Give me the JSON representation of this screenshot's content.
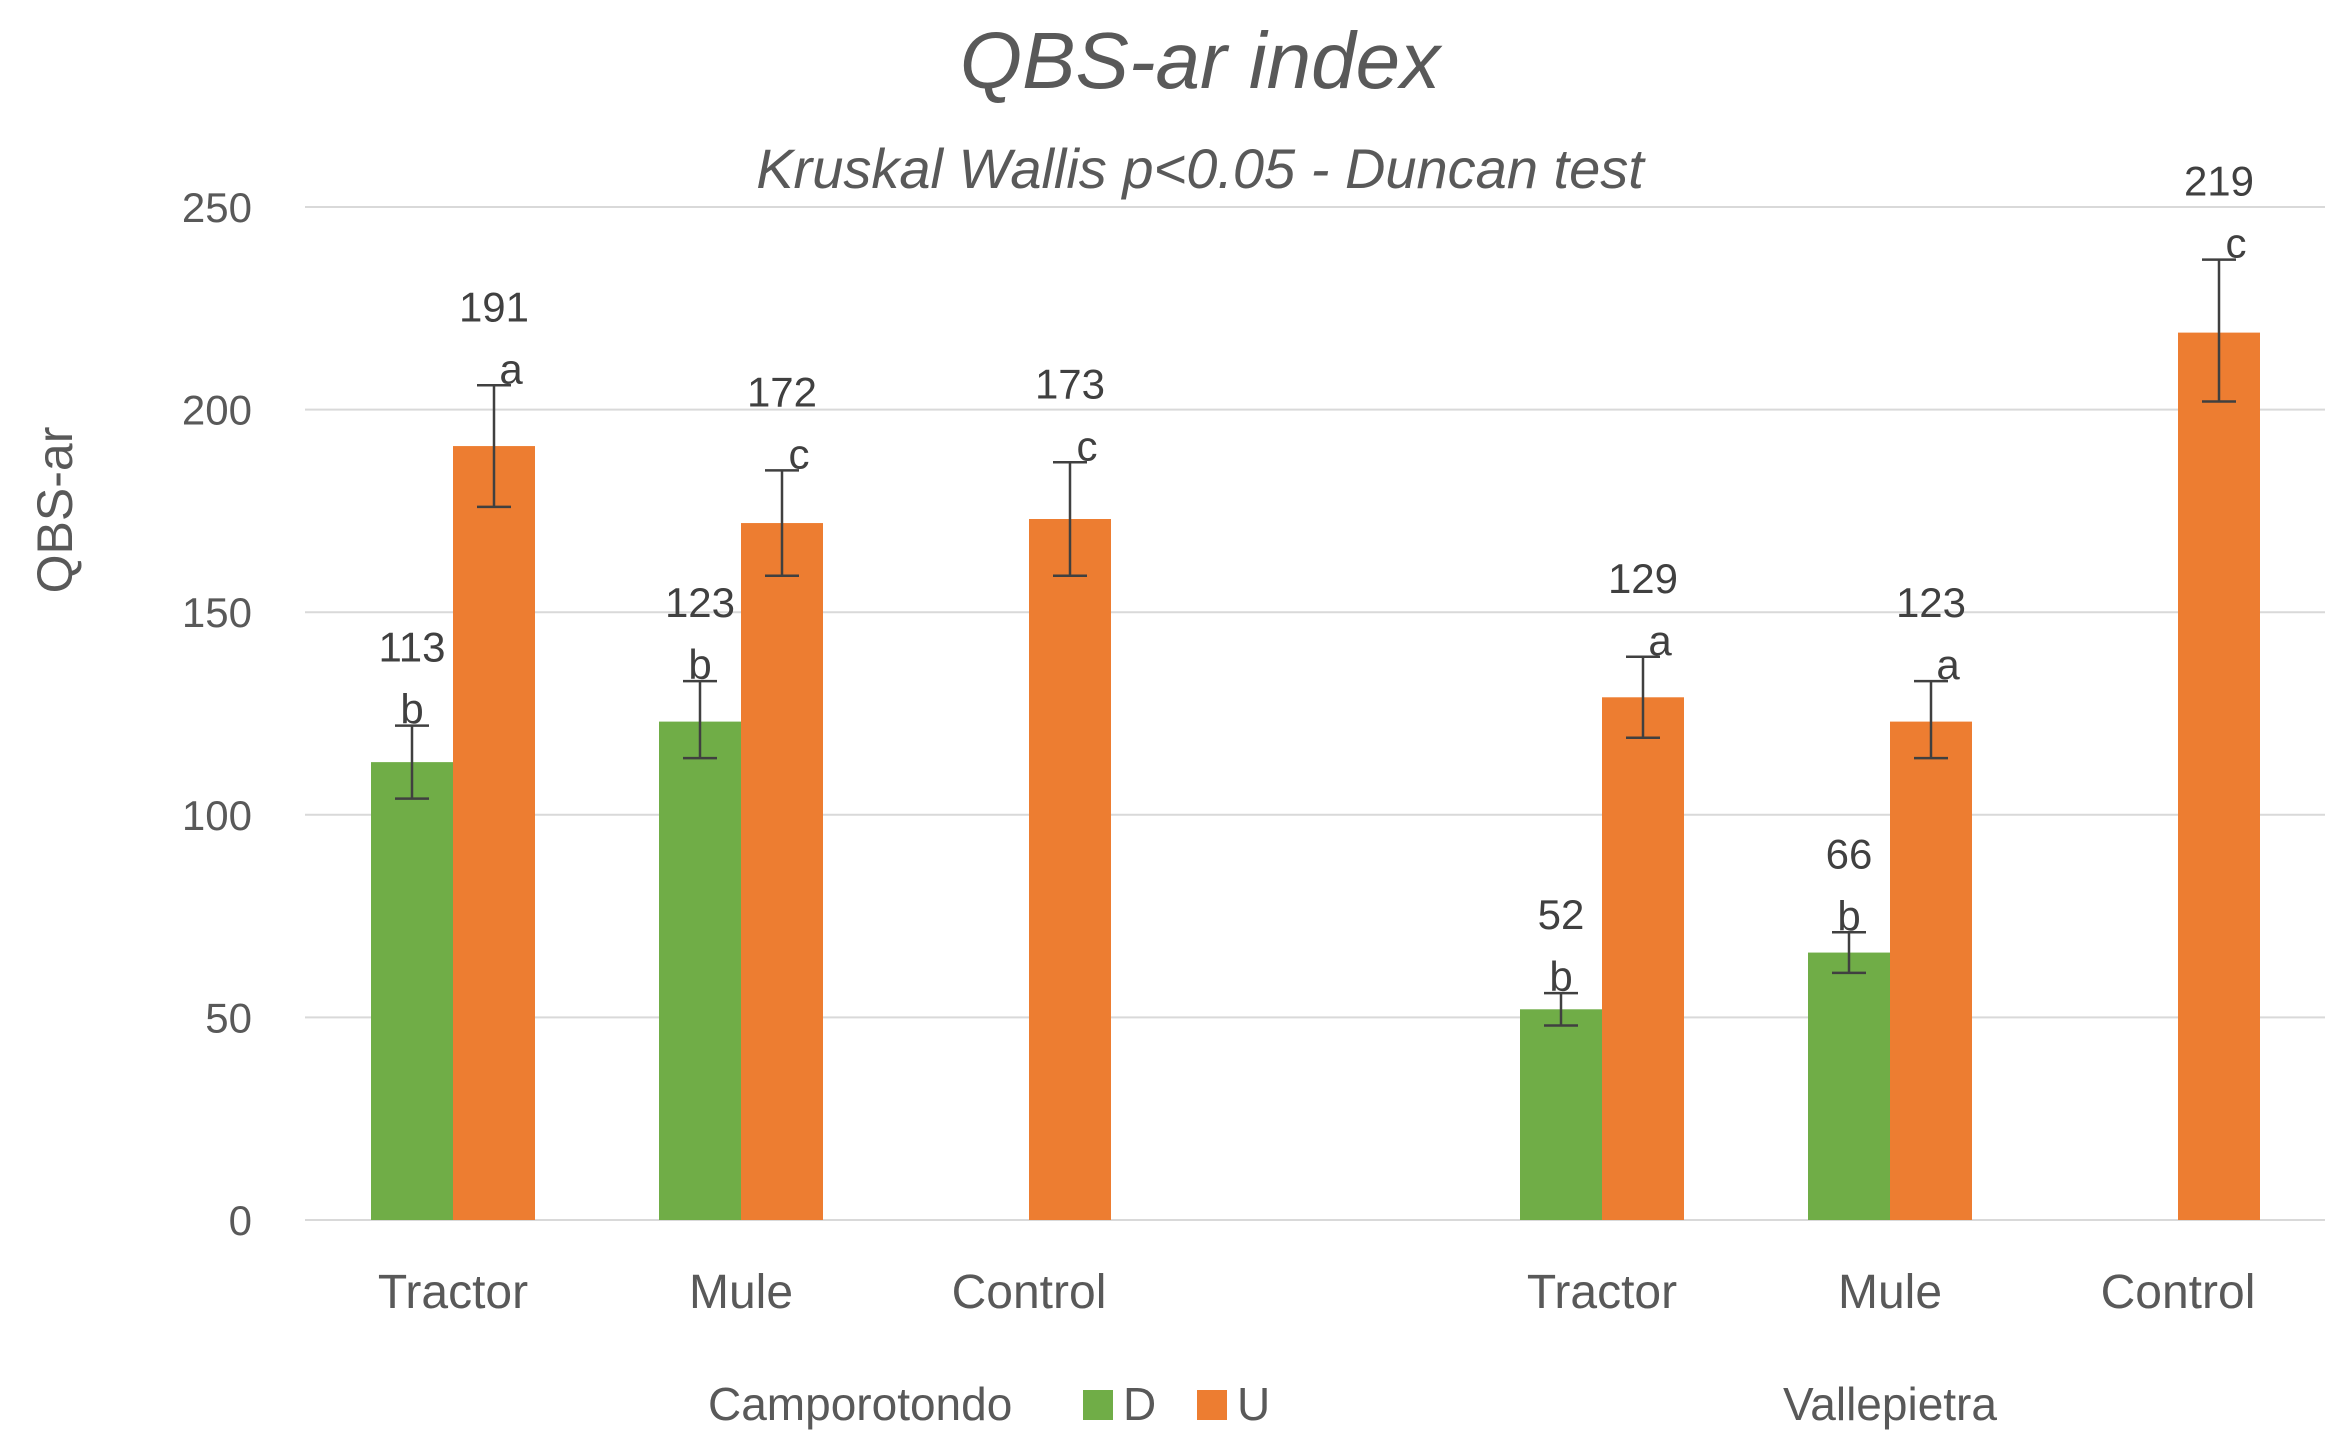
{
  "chart_data": {
    "type": "bar",
    "title": "QBS-ar index",
    "subtitle": "Kruskal Wallis p<0.05 - Duncan test",
    "ylabel": "QBS-ar",
    "xlabel": "",
    "ylim": [
      0,
      250
    ],
    "yticks": [
      0,
      50,
      100,
      150,
      200,
      250
    ],
    "grid": true,
    "legend_position": "bottom",
    "colors": {
      "D": "#70ad47",
      "U": "#ed7d31",
      "error": "#404040"
    },
    "groups": [
      {
        "name": "Camporotondo",
        "categories": [
          {
            "label": "Tractor",
            "D": {
              "value": 113,
              "label": "113",
              "letter": "b",
              "err_low": 104,
              "err_high": 122
            },
            "U": {
              "value": 191,
              "label": "191",
              "letter": "a",
              "err_low": 176,
              "err_high": 206
            }
          },
          {
            "label": "Mule",
            "D": {
              "value": 123,
              "label": "123",
              "letter": "b",
              "err_low": 114,
              "err_high": 133
            },
            "U": {
              "value": 172,
              "label": "172",
              "letter": "c",
              "err_low": 159,
              "err_high": 185
            }
          },
          {
            "label": "Control",
            "D": null,
            "U": {
              "value": 173,
              "label": "173",
              "letter": "c",
              "err_low": 159,
              "err_high": 187
            }
          }
        ]
      },
      {
        "name": "Vallepietra",
        "categories": [
          {
            "label": "Tractor",
            "D": {
              "value": 52,
              "label": "52",
              "letter": "b",
              "err_low": 48,
              "err_high": 56
            },
            "U": {
              "value": 129,
              "label": "129",
              "letter": "a",
              "err_low": 119,
              "err_high": 139
            }
          },
          {
            "label": "Mule",
            "D": {
              "value": 66,
              "label": "66",
              "letter": "b",
              "err_low": 61,
              "err_high": 71
            },
            "U": {
              "value": 123,
              "label": "123",
              "letter": "a",
              "err_low": 114,
              "err_high": 133
            }
          },
          {
            "label": "Control",
            "D": null,
            "U": {
              "value": 219,
              "label": "219",
              "letter": "c",
              "err_low": 202,
              "err_high": 237
            }
          }
        ]
      }
    ],
    "legend": [
      {
        "key": "D",
        "label": "D"
      },
      {
        "key": "U",
        "label": "U"
      }
    ]
  }
}
